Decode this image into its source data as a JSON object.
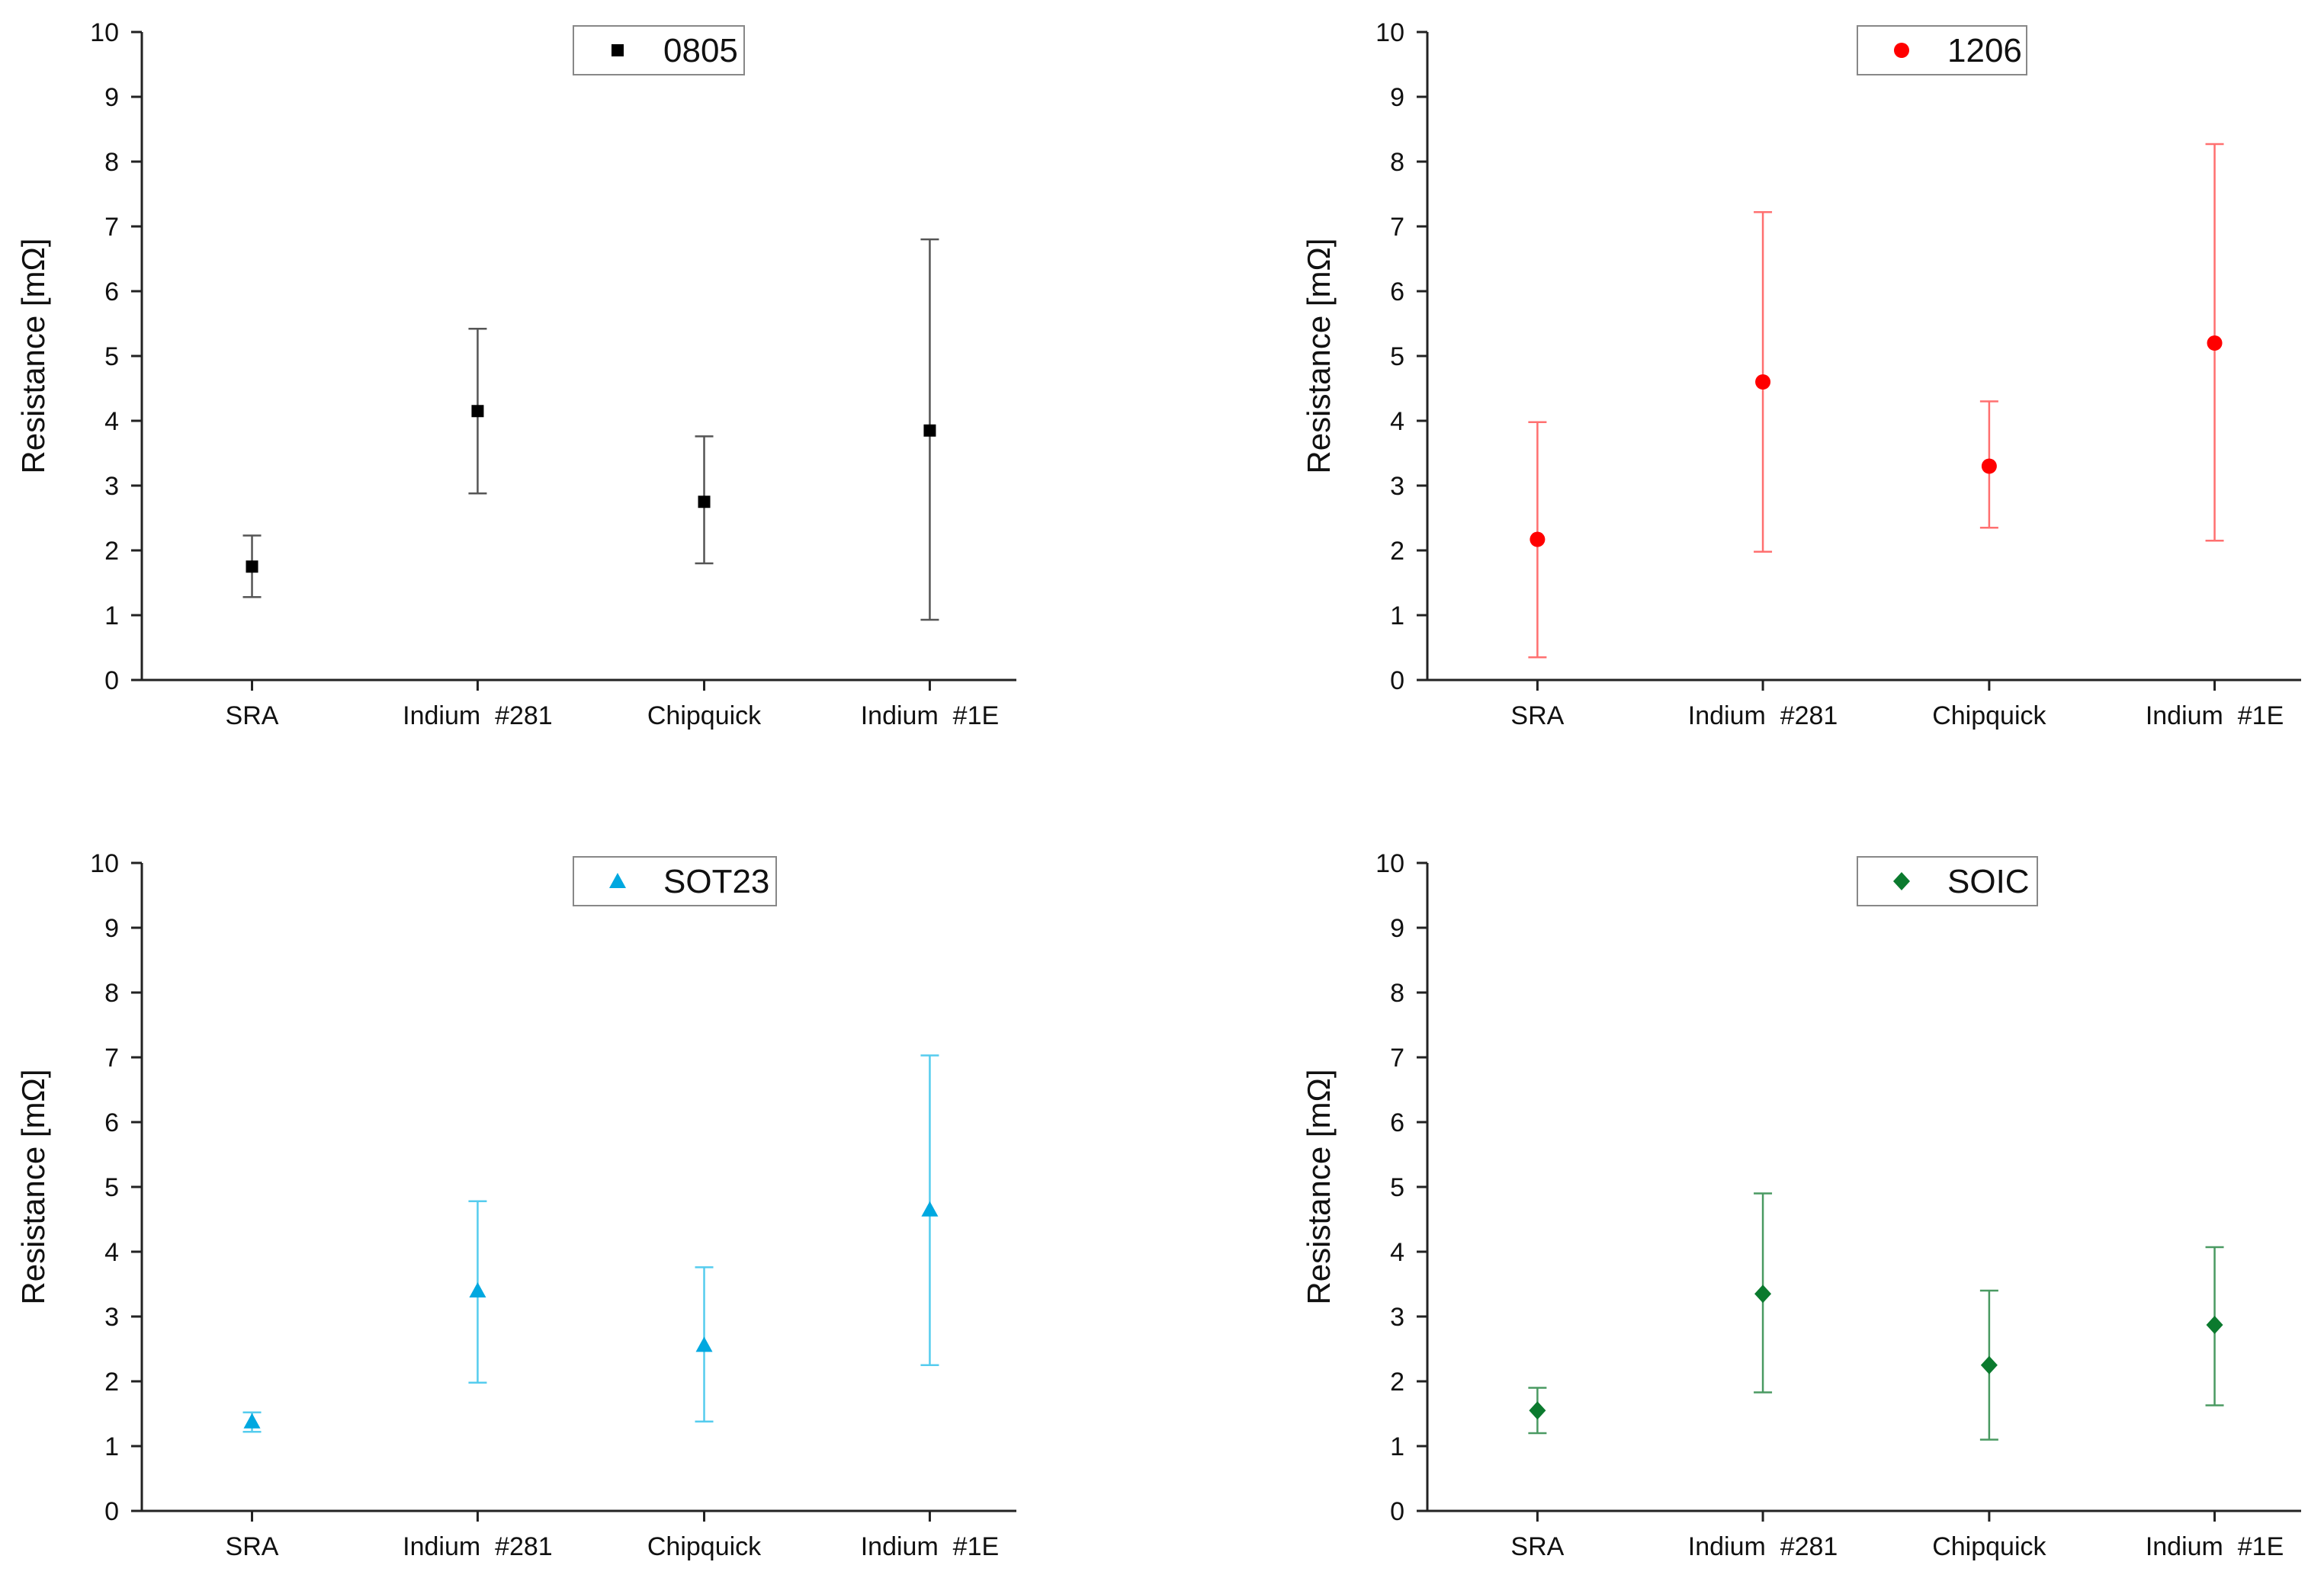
{
  "chart_data": [
    {
      "type": "scatter",
      "series_name": "0805",
      "legend_label": "0805",
      "legend_position": "top-center",
      "marker": "square",
      "color": "#000000",
      "error_bar_color": "#555555",
      "categories": [
        "SRA",
        "Indium  #281",
        "Chipquick",
        "Indium  #1E"
      ],
      "values": [
        1.75,
        4.15,
        2.75,
        3.85
      ],
      "error_low": [
        1.28,
        2.88,
        1.8,
        0.93
      ],
      "error_high": [
        2.23,
        5.42,
        3.76,
        6.8
      ],
      "xlabel": "",
      "ylabel": "Resistance [mΩ]",
      "ylim": [
        0,
        10
      ],
      "yticks": [
        "0",
        "1",
        "2",
        "3",
        "4",
        "5",
        "6",
        "7",
        "8",
        "9",
        "10"
      ]
    },
    {
      "type": "scatter",
      "series_name": "1206",
      "legend_label": "1206",
      "legend_position": "top-center",
      "marker": "circle",
      "color": "#ff0000",
      "error_bar_color": "#ff7070",
      "categories": [
        "SRA",
        "Indium  #281",
        "Chipquick",
        "Indium  #1E"
      ],
      "values": [
        2.17,
        4.6,
        3.3,
        5.2
      ],
      "error_low": [
        0.35,
        1.98,
        2.35,
        2.15
      ],
      "error_high": [
        3.98,
        7.22,
        4.3,
        8.27
      ],
      "xlabel": "",
      "ylabel": "Resistance [mΩ]",
      "ylim": [
        0,
        10
      ],
      "yticks": [
        "0",
        "1",
        "2",
        "3",
        "4",
        "5",
        "6",
        "7",
        "8",
        "9",
        "10"
      ]
    },
    {
      "type": "scatter",
      "series_name": "SOT23",
      "legend_label": "SOT23",
      "legend_position": "top-center",
      "marker": "triangle",
      "color": "#00a8e0",
      "error_bar_color": "#55ccee",
      "categories": [
        "SRA",
        "Indium  #281",
        "Chipquick",
        "Indium  #1E"
      ],
      "values": [
        1.38,
        3.4,
        2.56,
        4.65
      ],
      "error_low": [
        1.22,
        1.98,
        1.38,
        2.25
      ],
      "error_high": [
        1.52,
        4.78,
        3.76,
        7.03
      ],
      "xlabel": "",
      "ylabel": "Resistance [mΩ]",
      "ylim": [
        0,
        10
      ],
      "yticks": [
        "0",
        "1",
        "2",
        "3",
        "4",
        "5",
        "6",
        "7",
        "8",
        "9",
        "10"
      ]
    },
    {
      "type": "scatter",
      "series_name": "SOIC",
      "legend_label": "SOIC",
      "legend_position": "top-center",
      "marker": "diamond",
      "color": "#0b7a2e",
      "error_bar_color": "#4a9a62",
      "categories": [
        "SRA",
        "Indium  #281",
        "Chipquick",
        "Indium  #1E"
      ],
      "values": [
        1.55,
        3.35,
        2.25,
        2.87
      ],
      "error_low": [
        1.2,
        1.83,
        1.1,
        1.63
      ],
      "error_high": [
        1.9,
        4.9,
        3.4,
        4.07
      ],
      "xlabel": "",
      "ylabel": "Resistance [mΩ]",
      "ylim": [
        0,
        10
      ],
      "yticks": [
        "0",
        "1",
        "2",
        "3",
        "4",
        "5",
        "6",
        "7",
        "8",
        "9",
        "10"
      ]
    }
  ]
}
